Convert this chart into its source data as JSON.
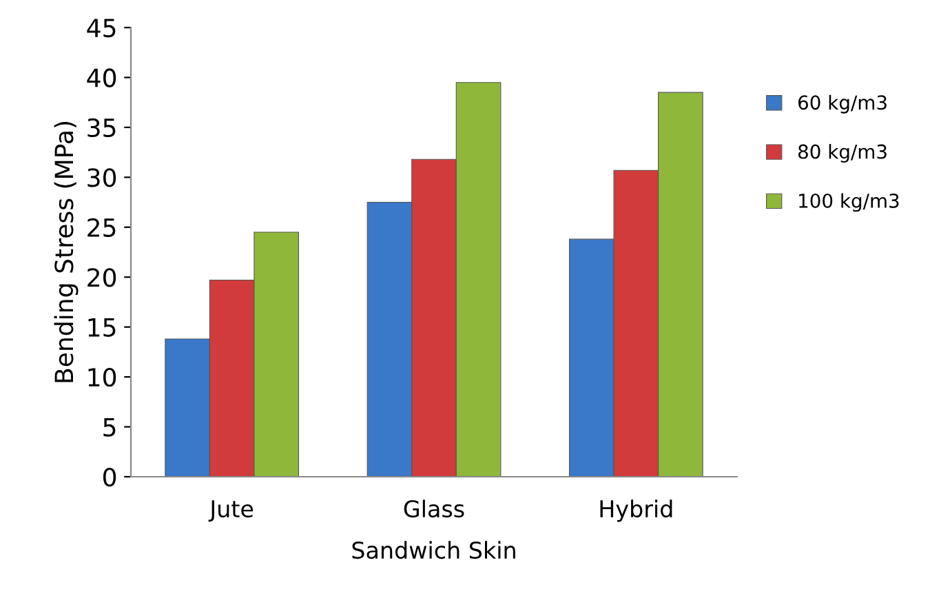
{
  "chart_data": {
    "type": "bar",
    "xlabel": "Sandwich Skin",
    "ylabel": "Bending Stress (MPa)",
    "categories": [
      "Jute",
      "Glass",
      "Hybrid"
    ],
    "series": [
      {
        "name": "60 kg/m3",
        "color": "#3a78c9",
        "values": [
          13.8,
          27.5,
          23.8
        ]
      },
      {
        "name": "80 kg/m3",
        "color": "#d13b3b",
        "values": [
          19.7,
          31.8,
          30.7
        ]
      },
      {
        "name": "100 kg/m3",
        "color": "#8fb83a",
        "values": [
          24.5,
          39.5,
          38.5
        ]
      }
    ],
    "ylim": [
      0,
      45
    ],
    "yticks": [
      0,
      5,
      10,
      15,
      20,
      25,
      30,
      35,
      40,
      45
    ],
    "grid": false,
    "legend": "right"
  }
}
